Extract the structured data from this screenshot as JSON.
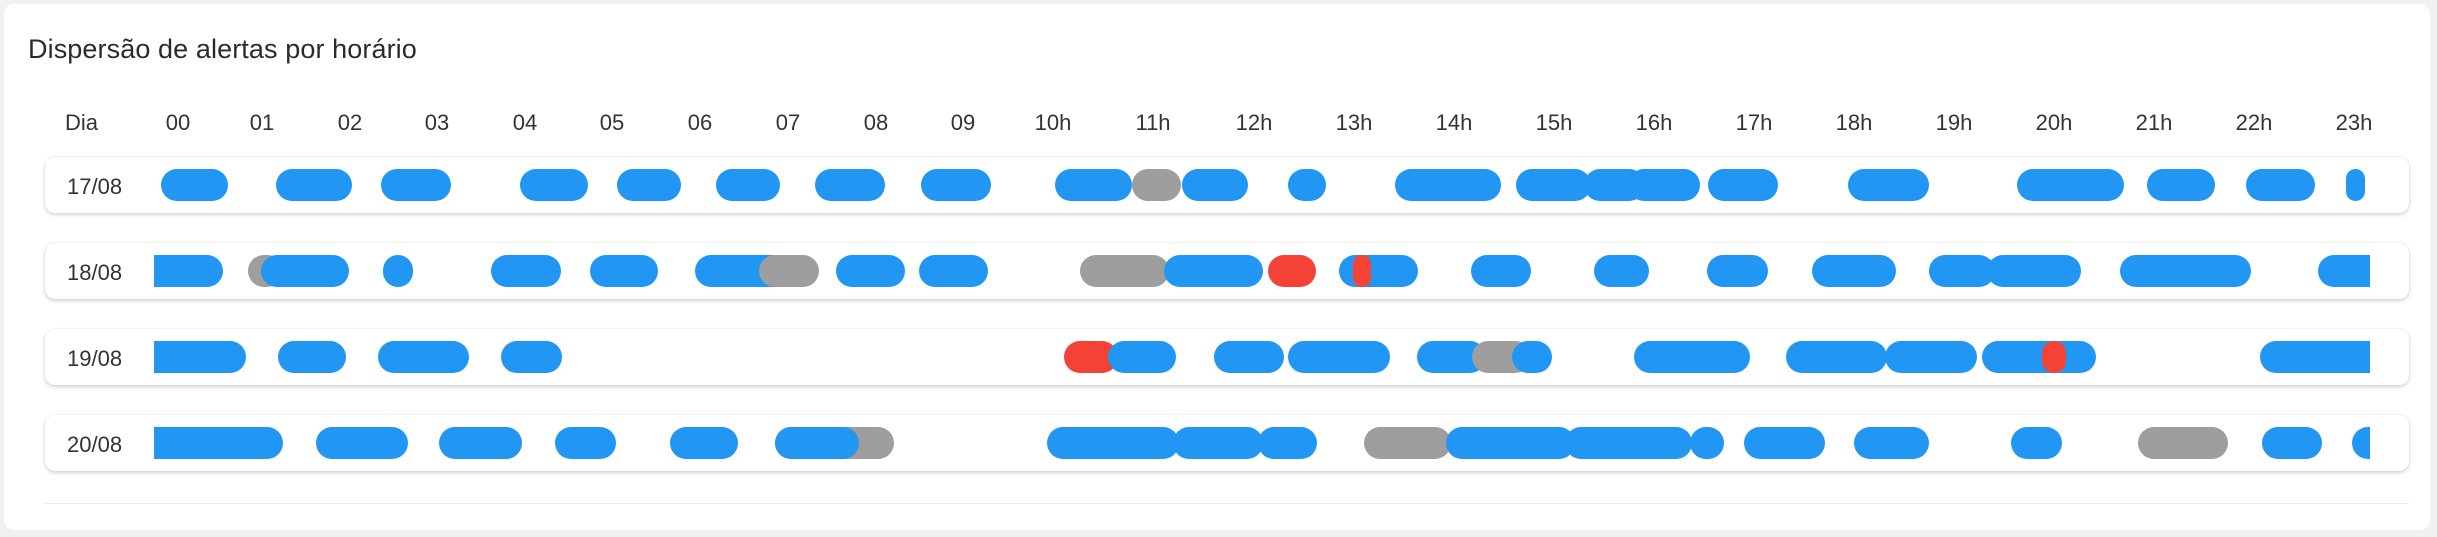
{
  "title": "Dispersão de alertas por horário",
  "header": {
    "day_label": "Dia",
    "hours": [
      "00",
      "01",
      "02",
      "03",
      "04",
      "05",
      "06",
      "07",
      "08",
      "09",
      "10h",
      "11h",
      "12h",
      "13h",
      "14h",
      "15h",
      "16h",
      "17h",
      "18h",
      "19h",
      "20h",
      "21h",
      "22h",
      "23h"
    ]
  },
  "colors": {
    "blue": "#2196f3",
    "gray": "#9e9e9e",
    "red": "#f44336"
  },
  "chart_data": {
    "type": "timeline",
    "title": "Dispersão de alertas por horário",
    "x_unit": "hour of day",
    "xlim": [
      0,
      24
    ],
    "rows": [
      {
        "day": "17/08",
        "segments": [
          {
            "start": 0.07,
            "end": 0.77,
            "color": "blue"
          },
          {
            "start": 1.28,
            "end": 2.07,
            "color": "blue"
          },
          {
            "start": 2.38,
            "end": 3.11,
            "color": "blue"
          },
          {
            "start": 3.83,
            "end": 4.54,
            "color": "blue"
          },
          {
            "start": 4.85,
            "end": 5.52,
            "color": "blue"
          },
          {
            "start": 5.89,
            "end": 6.56,
            "color": "blue"
          },
          {
            "start": 6.92,
            "end": 7.65,
            "color": "blue"
          },
          {
            "start": 8.03,
            "end": 8.76,
            "color": "blue"
          },
          {
            "start": 9.43,
            "end": 10.24,
            "color": "blue"
          },
          {
            "start": 10.24,
            "end": 10.75,
            "color": "gray"
          },
          {
            "start": 10.76,
            "end": 11.46,
            "color": "blue"
          },
          {
            "start": 11.87,
            "end": 12.27,
            "color": "blue"
          },
          {
            "start": 12.99,
            "end": 14.11,
            "color": "blue"
          },
          {
            "start": 14.26,
            "end": 15.05,
            "color": "blue"
          },
          {
            "start": 14.97,
            "end": 15.61,
            "color": "blue"
          },
          {
            "start": 15.43,
            "end": 16.19,
            "color": "blue"
          },
          {
            "start": 16.27,
            "end": 17.01,
            "color": "blue"
          },
          {
            "start": 17.74,
            "end": 18.59,
            "color": "blue"
          },
          {
            "start": 19.51,
            "end": 20.63,
            "color": "blue"
          },
          {
            "start": 20.87,
            "end": 21.58,
            "color": "blue"
          },
          {
            "start": 21.91,
            "end": 22.63,
            "color": "blue"
          },
          {
            "start": 22.95,
            "end": 23.15,
            "color": "blue"
          }
        ]
      },
      {
        "day": "18/08",
        "segments": [
          {
            "start": 0.0,
            "end": 0.72,
            "color": "blue"
          },
          {
            "start": 0.98,
            "end": 1.35,
            "color": "gray"
          },
          {
            "start": 1.12,
            "end": 2.04,
            "color": "blue"
          },
          {
            "start": 2.4,
            "end": 2.71,
            "color": "blue"
          },
          {
            "start": 3.53,
            "end": 4.26,
            "color": "blue"
          },
          {
            "start": 4.57,
            "end": 5.28,
            "color": "blue"
          },
          {
            "start": 5.66,
            "end": 6.69,
            "color": "blue"
          },
          {
            "start": 6.34,
            "end": 6.96,
            "color": "gray"
          },
          {
            "start": 7.14,
            "end": 7.86,
            "color": "blue"
          },
          {
            "start": 8.01,
            "end": 8.73,
            "color": "blue"
          },
          {
            "start": 9.7,
            "end": 10.63,
            "color": "gray"
          },
          {
            "start": 10.58,
            "end": 11.61,
            "color": "blue"
          },
          {
            "start": 11.67,
            "end": 12.17,
            "color": "red"
          },
          {
            "start": 12.41,
            "end": 13.24,
            "color": "blue"
          },
          {
            "start": 12.56,
            "end": 12.72,
            "color": "red"
          },
          {
            "start": 13.79,
            "end": 14.42,
            "color": "blue"
          },
          {
            "start": 15.08,
            "end": 15.65,
            "color": "blue"
          },
          {
            "start": 16.26,
            "end": 16.9,
            "color": "blue"
          },
          {
            "start": 17.36,
            "end": 18.24,
            "color": "blue"
          },
          {
            "start": 18.59,
            "end": 19.28,
            "color": "blue"
          },
          {
            "start": 19.19,
            "end": 20.18,
            "color": "blue"
          },
          {
            "start": 20.59,
            "end": 21.96,
            "color": "blue"
          },
          {
            "start": 22.66,
            "end": 23.2,
            "color": "blue"
          }
        ]
      },
      {
        "day": "19/08",
        "segments": [
          {
            "start": 0.0,
            "end": 0.96,
            "color": "blue"
          },
          {
            "start": 1.3,
            "end": 2.01,
            "color": "blue"
          },
          {
            "start": 2.35,
            "end": 3.3,
            "color": "blue"
          },
          {
            "start": 3.63,
            "end": 4.27,
            "color": "blue"
          },
          {
            "start": 9.53,
            "end": 10.09,
            "color": "red"
          },
          {
            "start": 9.99,
            "end": 10.7,
            "color": "blue"
          },
          {
            "start": 11.1,
            "end": 11.83,
            "color": "blue"
          },
          {
            "start": 11.87,
            "end": 12.94,
            "color": "blue"
          },
          {
            "start": 13.23,
            "end": 13.95,
            "color": "blue"
          },
          {
            "start": 13.8,
            "end": 14.42,
            "color": "gray"
          },
          {
            "start": 14.22,
            "end": 14.64,
            "color": "blue"
          },
          {
            "start": 15.5,
            "end": 16.71,
            "color": "blue"
          },
          {
            "start": 17.09,
            "end": 18.15,
            "color": "blue"
          },
          {
            "start": 18.13,
            "end": 19.09,
            "color": "blue"
          },
          {
            "start": 19.14,
            "end": 20.34,
            "color": "blue"
          },
          {
            "start": 19.77,
            "end": 20.02,
            "color": "red"
          },
          {
            "start": 22.05,
            "end": 23.2,
            "color": "blue"
          }
        ]
      },
      {
        "day": "20/08",
        "segments": [
          {
            "start": 0.0,
            "end": 1.35,
            "color": "blue"
          },
          {
            "start": 1.7,
            "end": 2.66,
            "color": "blue"
          },
          {
            "start": 2.98,
            "end": 3.85,
            "color": "blue"
          },
          {
            "start": 4.2,
            "end": 4.84,
            "color": "blue"
          },
          {
            "start": 5.4,
            "end": 6.12,
            "color": "blue"
          },
          {
            "start": 6.5,
            "end": 7.75,
            "color": "gray"
          },
          {
            "start": 6.5,
            "end": 7.38,
            "color": "blue"
          },
          {
            "start": 9.35,
            "end": 10.73,
            "color": "blue"
          },
          {
            "start": 10.67,
            "end": 11.61,
            "color": "blue"
          },
          {
            "start": 11.56,
            "end": 12.18,
            "color": "blue"
          },
          {
            "start": 12.67,
            "end": 13.58,
            "color": "gray"
          },
          {
            "start": 13.53,
            "end": 14.88,
            "color": "blue"
          },
          {
            "start": 14.78,
            "end": 16.11,
            "color": "blue"
          },
          {
            "start": 16.08,
            "end": 16.44,
            "color": "blue"
          },
          {
            "start": 16.65,
            "end": 17.5,
            "color": "blue"
          },
          {
            "start": 17.8,
            "end": 18.59,
            "color": "blue"
          },
          {
            "start": 19.44,
            "end": 19.98,
            "color": "blue"
          },
          {
            "start": 20.78,
            "end": 21.72,
            "color": "gray"
          },
          {
            "start": 22.07,
            "end": 22.7,
            "color": "blue"
          },
          {
            "start": 23.02,
            "end": 23.2,
            "color": "blue"
          }
        ]
      }
    ]
  }
}
